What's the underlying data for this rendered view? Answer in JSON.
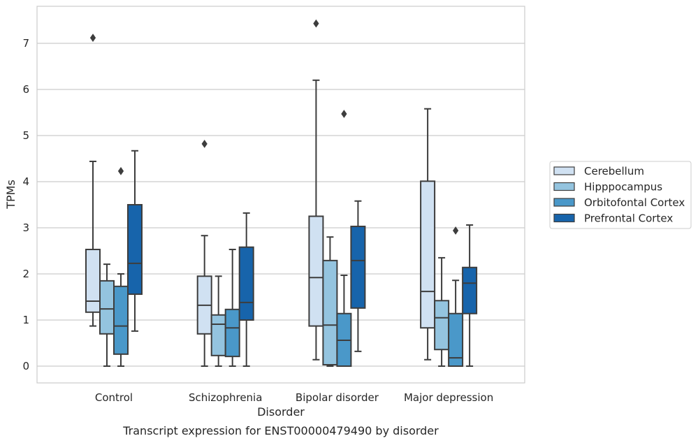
{
  "chart_data": {
    "type": "box",
    "title": "",
    "caption": "Transcript expression for ENST00000479490 by disorder",
    "xlabel": "Disorder",
    "ylabel": "TPMs",
    "ylim": [
      -0.35,
      7.8
    ],
    "yticks": [
      0,
      1,
      2,
      3,
      4,
      5,
      6,
      7
    ],
    "categories": [
      "Control",
      "Schizophrenia",
      "Bipolar disorder",
      "Major depression"
    ],
    "grid": "horizontal",
    "legend_position": "right",
    "series": [
      {
        "name": "Cerebellum",
        "color": "#d0e1f2",
        "boxes": [
          {
            "whislo": 0.87,
            "q1": 1.17,
            "med": 1.41,
            "q3": 2.53,
            "whishi": 4.44,
            "fliers": [
              7.12
            ]
          },
          {
            "whislo": 0.0,
            "q1": 0.7,
            "med": 1.32,
            "q3": 1.95,
            "whishi": 2.83,
            "fliers": [
              4.82
            ]
          },
          {
            "whislo": 0.14,
            "q1": 0.87,
            "med": 1.92,
            "q3": 3.25,
            "whishi": 6.2,
            "fliers": [
              7.43
            ]
          },
          {
            "whislo": 0.14,
            "q1": 0.83,
            "med": 1.62,
            "q3": 4.01,
            "whishi": 5.58,
            "fliers": []
          }
        ]
      },
      {
        "name": "Hipppocampus",
        "color": "#94c4df",
        "boxes": [
          {
            "whislo": 0.0,
            "q1": 0.7,
            "med": 1.24,
            "q3": 1.85,
            "whishi": 2.21,
            "fliers": []
          },
          {
            "whislo": 0.0,
            "q1": 0.23,
            "med": 0.91,
            "q3": 1.11,
            "whishi": 1.95,
            "fliers": []
          },
          {
            "whislo": 0.0,
            "q1": 0.03,
            "med": 0.89,
            "q3": 2.29,
            "whishi": 2.8,
            "fliers": []
          },
          {
            "whislo": 0.0,
            "q1": 0.36,
            "med": 1.05,
            "q3": 1.42,
            "whishi": 2.35,
            "fliers": []
          }
        ]
      },
      {
        "name": "Orbitofontal Cortex",
        "color": "#4a98c9",
        "boxes": [
          {
            "whislo": 0.0,
            "q1": 0.26,
            "med": 0.87,
            "q3": 1.73,
            "whishi": 2.0,
            "fliers": [
              4.23
            ]
          },
          {
            "whislo": 0.0,
            "q1": 0.21,
            "med": 0.83,
            "q3": 1.23,
            "whishi": 2.53,
            "fliers": []
          },
          {
            "whislo": 0.0,
            "q1": 0.0,
            "med": 0.56,
            "q3": 1.14,
            "whishi": 1.97,
            "fliers": [
              5.47
            ]
          },
          {
            "whislo": 0.0,
            "q1": 0.0,
            "med": 0.18,
            "q3": 1.14,
            "whishi": 1.86,
            "fliers": [
              2.94
            ]
          }
        ]
      },
      {
        "name": "Prefrontal Cortex",
        "color": "#1764ab",
        "boxes": [
          {
            "whislo": 0.76,
            "q1": 1.56,
            "med": 2.23,
            "q3": 3.5,
            "whishi": 4.67,
            "fliers": []
          },
          {
            "whislo": 0.0,
            "q1": 1.0,
            "med": 1.38,
            "q3": 2.58,
            "whishi": 3.32,
            "fliers": []
          },
          {
            "whislo": 0.32,
            "q1": 1.26,
            "med": 2.29,
            "q3": 3.03,
            "whishi": 3.58,
            "fliers": []
          },
          {
            "whislo": 0.0,
            "q1": 1.14,
            "med": 1.8,
            "q3": 2.14,
            "whishi": 3.06,
            "fliers": []
          }
        ]
      }
    ]
  }
}
